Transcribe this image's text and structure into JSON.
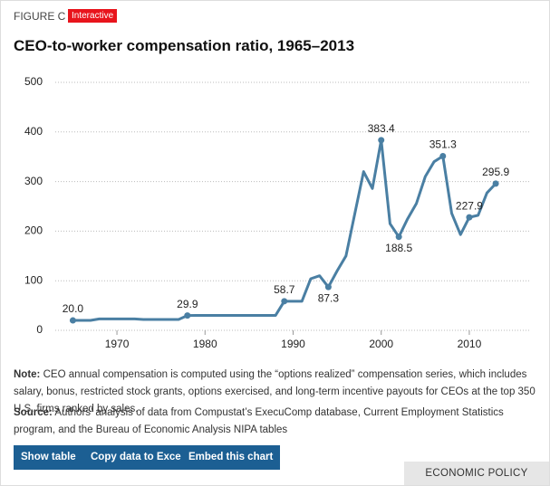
{
  "header": {
    "figure": "FIGURE C",
    "badge": "Interactive"
  },
  "chart_data": {
    "type": "line",
    "title": "CEO-to-worker compensation ratio, 1965–2013",
    "x": [
      1965,
      1966,
      1967,
      1968,
      1969,
      1970,
      1971,
      1972,
      1973,
      1974,
      1975,
      1976,
      1977,
      1978,
      1979,
      1980,
      1981,
      1982,
      1983,
      1984,
      1985,
      1986,
      1987,
      1988,
      1989,
      1990,
      1991,
      1992,
      1993,
      1994,
      1995,
      1996,
      1997,
      1998,
      1999,
      2000,
      2001,
      2002,
      2003,
      2004,
      2005,
      2006,
      2007,
      2008,
      2009,
      2010,
      2011,
      2012,
      2013
    ],
    "series": [
      {
        "name": "CEO-to-worker compensation ratio",
        "color": "#4a7fa3",
        "values": [
          20.0,
          20,
          20,
          23,
          23,
          23,
          23,
          23,
          22,
          22,
          22,
          22,
          22,
          29.9,
          30,
          30,
          30,
          30,
          30,
          30,
          30,
          30,
          30,
          30,
          58.7,
          58.7,
          58.7,
          104,
          110,
          87.3,
          120,
          150,
          235,
          320,
          286,
          383.4,
          215,
          188.5,
          225,
          256,
          310,
          340,
          351.3,
          236,
          193,
          227.9,
          232,
          277,
          295.9
        ],
        "value_labels": [
          "20.0",
          null,
          null,
          null,
          null,
          null,
          null,
          null,
          null,
          null,
          null,
          null,
          null,
          "29.9",
          null,
          null,
          null,
          null,
          null,
          null,
          null,
          null,
          null,
          null,
          "58.7",
          null,
          null,
          null,
          null,
          "87.3",
          null,
          null,
          null,
          null,
          null,
          "383.4",
          null,
          "188.5",
          null,
          null,
          null,
          null,
          "351.3",
          null,
          null,
          "227.9",
          null,
          null,
          "295.9"
        ]
      }
    ],
    "xlim": [
      1963,
      2017
    ],
    "xticks": [
      1970,
      1980,
      1990,
      2000,
      2010
    ],
    "ylim": [
      0,
      500
    ],
    "yticks": [
      0,
      100,
      200,
      300,
      400,
      500
    ],
    "grid": true
  },
  "notes": {
    "note_label": "Note:",
    "note": "CEO annual compensation is computed using the “options realized” compensation series, which includes salary, bonus, restricted stock grants, options exercised, and long-term incentive payouts for CEOs at the top 350 U.S. firms ranked by sales.",
    "source_label": "Source:",
    "source": "Authors’ analysis of data from Compustat’s ExecuComp database, Current Employment Statistics program, and the Bureau of Economic Analysis NIPA tables"
  },
  "buttons": [
    "Show table",
    "Copy data to Excel",
    "Embed this chart"
  ],
  "footer": "ECONOMIC POLICY INSTITUTE"
}
